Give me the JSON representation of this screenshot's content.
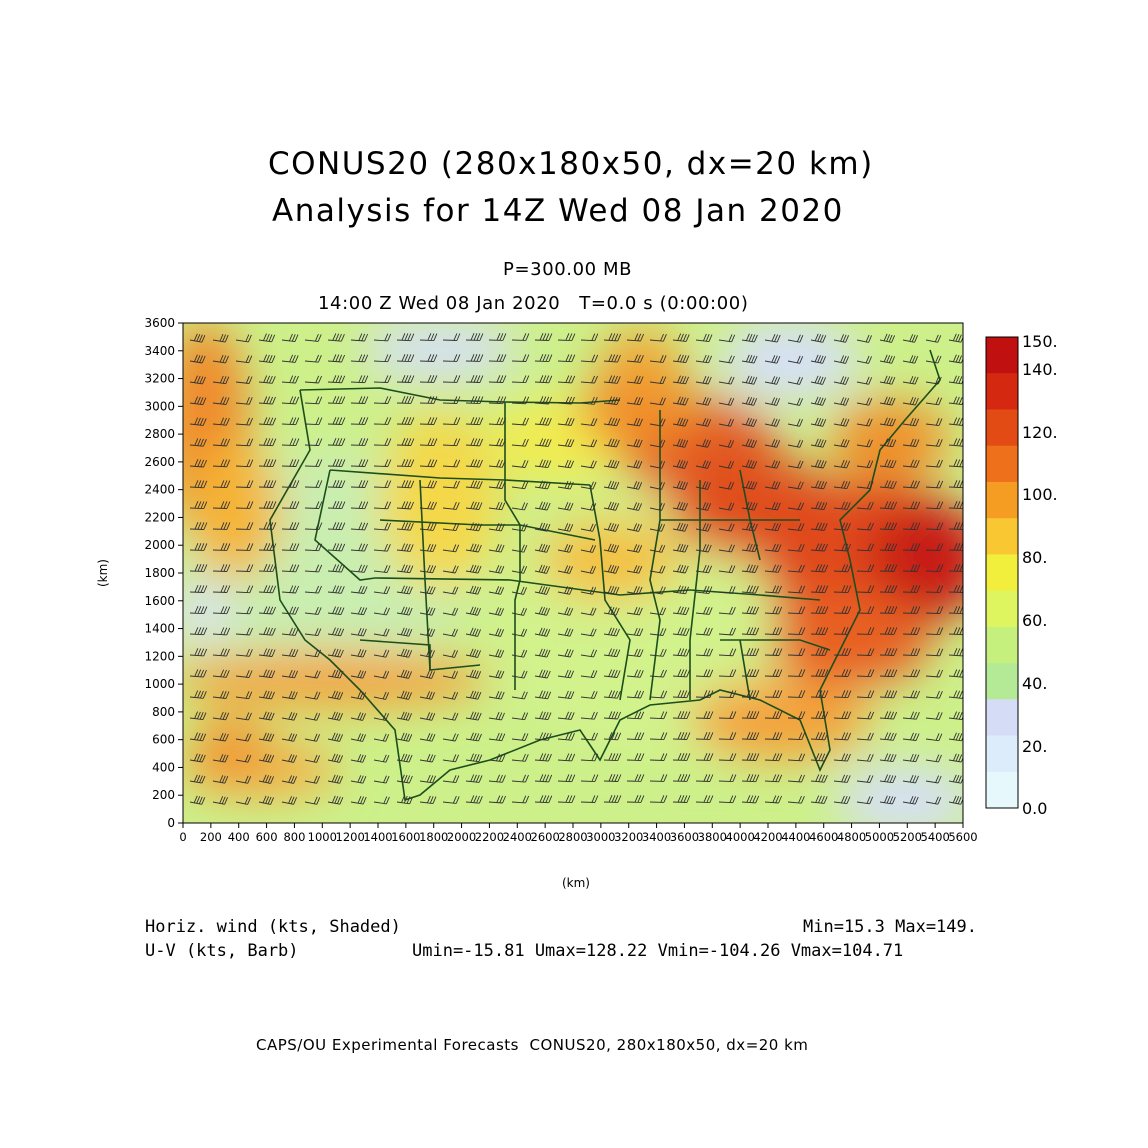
{
  "title": {
    "line1": "CONUS20 (280x180x50, dx=20 km)",
    "line2": "Analysis for 14Z Wed 08 Jan 2020"
  },
  "level_label": "P=300.00 MB",
  "time_label": "14:00 Z Wed 08 Jan 2020   T=0.0 s (0:00:00)",
  "axes": {
    "x_label": "(km)",
    "y_label": "(km)",
    "x_ticks": [
      "0",
      "200",
      "400",
      "600",
      "800",
      "1000",
      "1200",
      "1400",
      "1600",
      "1800",
      "2000",
      "2200",
      "2400",
      "2600",
      "2800",
      "3000",
      "3200",
      "3400",
      "3600",
      "3800",
      "4000",
      "4200",
      "4400",
      "4600",
      "4800",
      "5000",
      "5200",
      "5400",
      "5600"
    ],
    "y_ticks": [
      "0",
      "200",
      "400",
      "600",
      "800",
      "1000",
      "1200",
      "1400",
      "1600",
      "1800",
      "2000",
      "2200",
      "2400",
      "2600",
      "2800",
      "3000",
      "3200",
      "3400",
      "3600"
    ],
    "x_range": [
      0,
      5600
    ],
    "y_range": [
      0,
      3600
    ]
  },
  "colorbar": {
    "labels": [
      "150.",
      "140.",
      "120.",
      "100.",
      "80.",
      "60.",
      "40.",
      "20.",
      "0.0"
    ],
    "colors": [
      "#c01010",
      "#d42810",
      "#e34b14",
      "#ee701a",
      "#f59c22",
      "#f9c732",
      "#f2ee3c",
      "#dff55f",
      "#c6f07d",
      "#b4ea95",
      "#d4dcf6",
      "#dcecfa",
      "#e6f8fc"
    ]
  },
  "legend": {
    "shaded": "Horiz. wind (kts, Shaded)",
    "barb": "U-V (kts, Barb)",
    "minmax": "Min=15.3 Max=149.",
    "uv_stats": "Umin=-15.81 Umax=128.22 Vmin=-104.26 Vmax=104.71"
  },
  "footer": "CAPS/OU Experimental Forecasts  CONUS20, 280x180x50, dx=20 km"
}
